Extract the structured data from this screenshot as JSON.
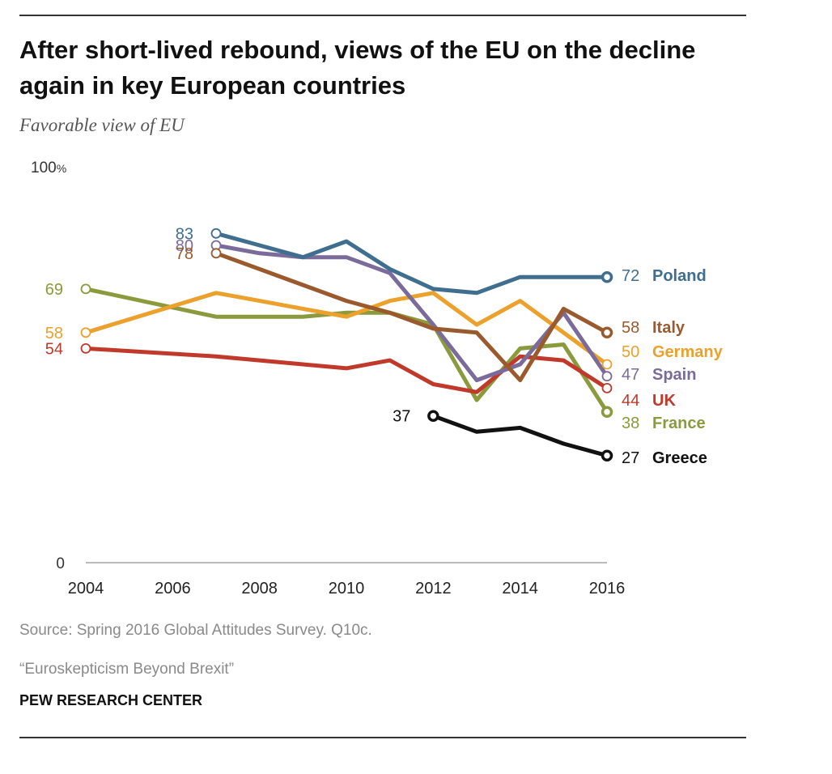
{
  "header": {
    "title": "After short-lived rebound, views of the EU on the decline again in key European countries",
    "subtitle": "Favorable view of EU"
  },
  "footer": {
    "source": "Source: Spring 2016 Global Attitudes Survey. Q10c.",
    "report": "“Euroskepticism Beyond Brexit”",
    "org": "PEW RESEARCH CENTER"
  },
  "chart_data": {
    "type": "line",
    "title": "After short-lived rebound, views of the EU on the decline again in key European countries",
    "subtitle": "Favorable view of EU",
    "xlabel": "",
    "ylabel": "",
    "xlim": [
      2004,
      2016
    ],
    "ylim": [
      0,
      100
    ],
    "x_ticks": [
      2004,
      2006,
      2008,
      2010,
      2012,
      2014,
      2016
    ],
    "y_ticks": [
      {
        "value": 0,
        "label": "0"
      },
      {
        "value": 100,
        "label": "100%"
      }
    ],
    "grid": false,
    "series": [
      {
        "name": "France",
        "color": "#8a9a3c",
        "x": [
          2004,
          2007,
          2008,
          2009,
          2010,
          2011,
          2012,
          2013,
          2014,
          2015,
          2016
        ],
        "values": [
          69,
          62,
          62,
          62,
          63,
          63,
          60,
          41,
          54,
          55,
          38
        ],
        "labels": [
          {
            "x": 2004,
            "value": 69,
            "text": "69",
            "pos": "left"
          },
          {
            "x": 2016,
            "value": 38,
            "text": "38",
            "pos": "right"
          }
        ]
      },
      {
        "name": "Germany",
        "color": "#eba12c",
        "x": [
          2004,
          2007,
          2008,
          2009,
          2010,
          2011,
          2012,
          2013,
          2014,
          2015,
          2016
        ],
        "values": [
          58,
          68,
          66,
          64,
          62,
          66,
          68,
          60,
          66,
          58,
          50
        ],
        "labels": [
          {
            "x": 2004,
            "value": 58,
            "text": "58",
            "pos": "left"
          },
          {
            "x": 2016,
            "value": 50,
            "text": "50",
            "pos": "right"
          }
        ]
      },
      {
        "name": "UK",
        "color": "#c0392b",
        "x": [
          2004,
          2007,
          2008,
          2009,
          2010,
          2011,
          2012,
          2013,
          2014,
          2015,
          2016
        ],
        "values": [
          54,
          52,
          51,
          50,
          49,
          51,
          45,
          43,
          52,
          51,
          44
        ],
        "labels": [
          {
            "x": 2004,
            "value": 54,
            "text": "54",
            "pos": "left"
          },
          {
            "x": 2016,
            "value": 44,
            "text": "44",
            "pos": "right"
          }
        ]
      },
      {
        "name": "Spain",
        "color": "#7a6b9a",
        "x": [
          2007,
          2008,
          2009,
          2010,
          2011,
          2012,
          2013,
          2014,
          2015,
          2016
        ],
        "values": [
          80,
          78,
          77,
          77,
          73,
          60,
          46,
          50,
          63,
          47
        ],
        "labels": [
          {
            "x": 2007,
            "value": 80,
            "text": "80",
            "pos": "left"
          },
          {
            "x": 2016,
            "value": 47,
            "text": "47",
            "pos": "right"
          }
        ]
      },
      {
        "name": "Italy",
        "color": "#9b5a2e",
        "x": [
          2007,
          2008,
          2009,
          2010,
          2011,
          2012,
          2013,
          2014,
          2015,
          2016
        ],
        "values": [
          78,
          74,
          70,
          66,
          63,
          59,
          58,
          46,
          64,
          58
        ],
        "labels": [
          {
            "x": 2007,
            "value": 78,
            "text": "78",
            "pos": "left"
          },
          {
            "x": 2016,
            "value": 58,
            "text": "58",
            "pos": "right"
          }
        ]
      },
      {
        "name": "Poland",
        "color": "#3f6e8f",
        "x": [
          2007,
          2008,
          2009,
          2010,
          2011,
          2012,
          2013,
          2014,
          2015,
          2016
        ],
        "values": [
          83,
          80,
          77,
          81,
          74,
          69,
          68,
          72,
          72,
          72
        ],
        "labels": [
          {
            "x": 2007,
            "value": 83,
            "text": "83",
            "pos": "left"
          },
          {
            "x": 2016,
            "value": 72,
            "text": "72",
            "pos": "right"
          }
        ]
      },
      {
        "name": "Greece",
        "color": "#111111",
        "x": [
          2012,
          2013,
          2014,
          2015,
          2016
        ],
        "values": [
          37,
          33,
          34,
          30,
          27
        ],
        "labels": [
          {
            "x": 2012,
            "value": 37,
            "text": "37",
            "pos": "left"
          },
          {
            "x": 2016,
            "value": 27,
            "text": "27",
            "pos": "right"
          }
        ]
      }
    ]
  }
}
